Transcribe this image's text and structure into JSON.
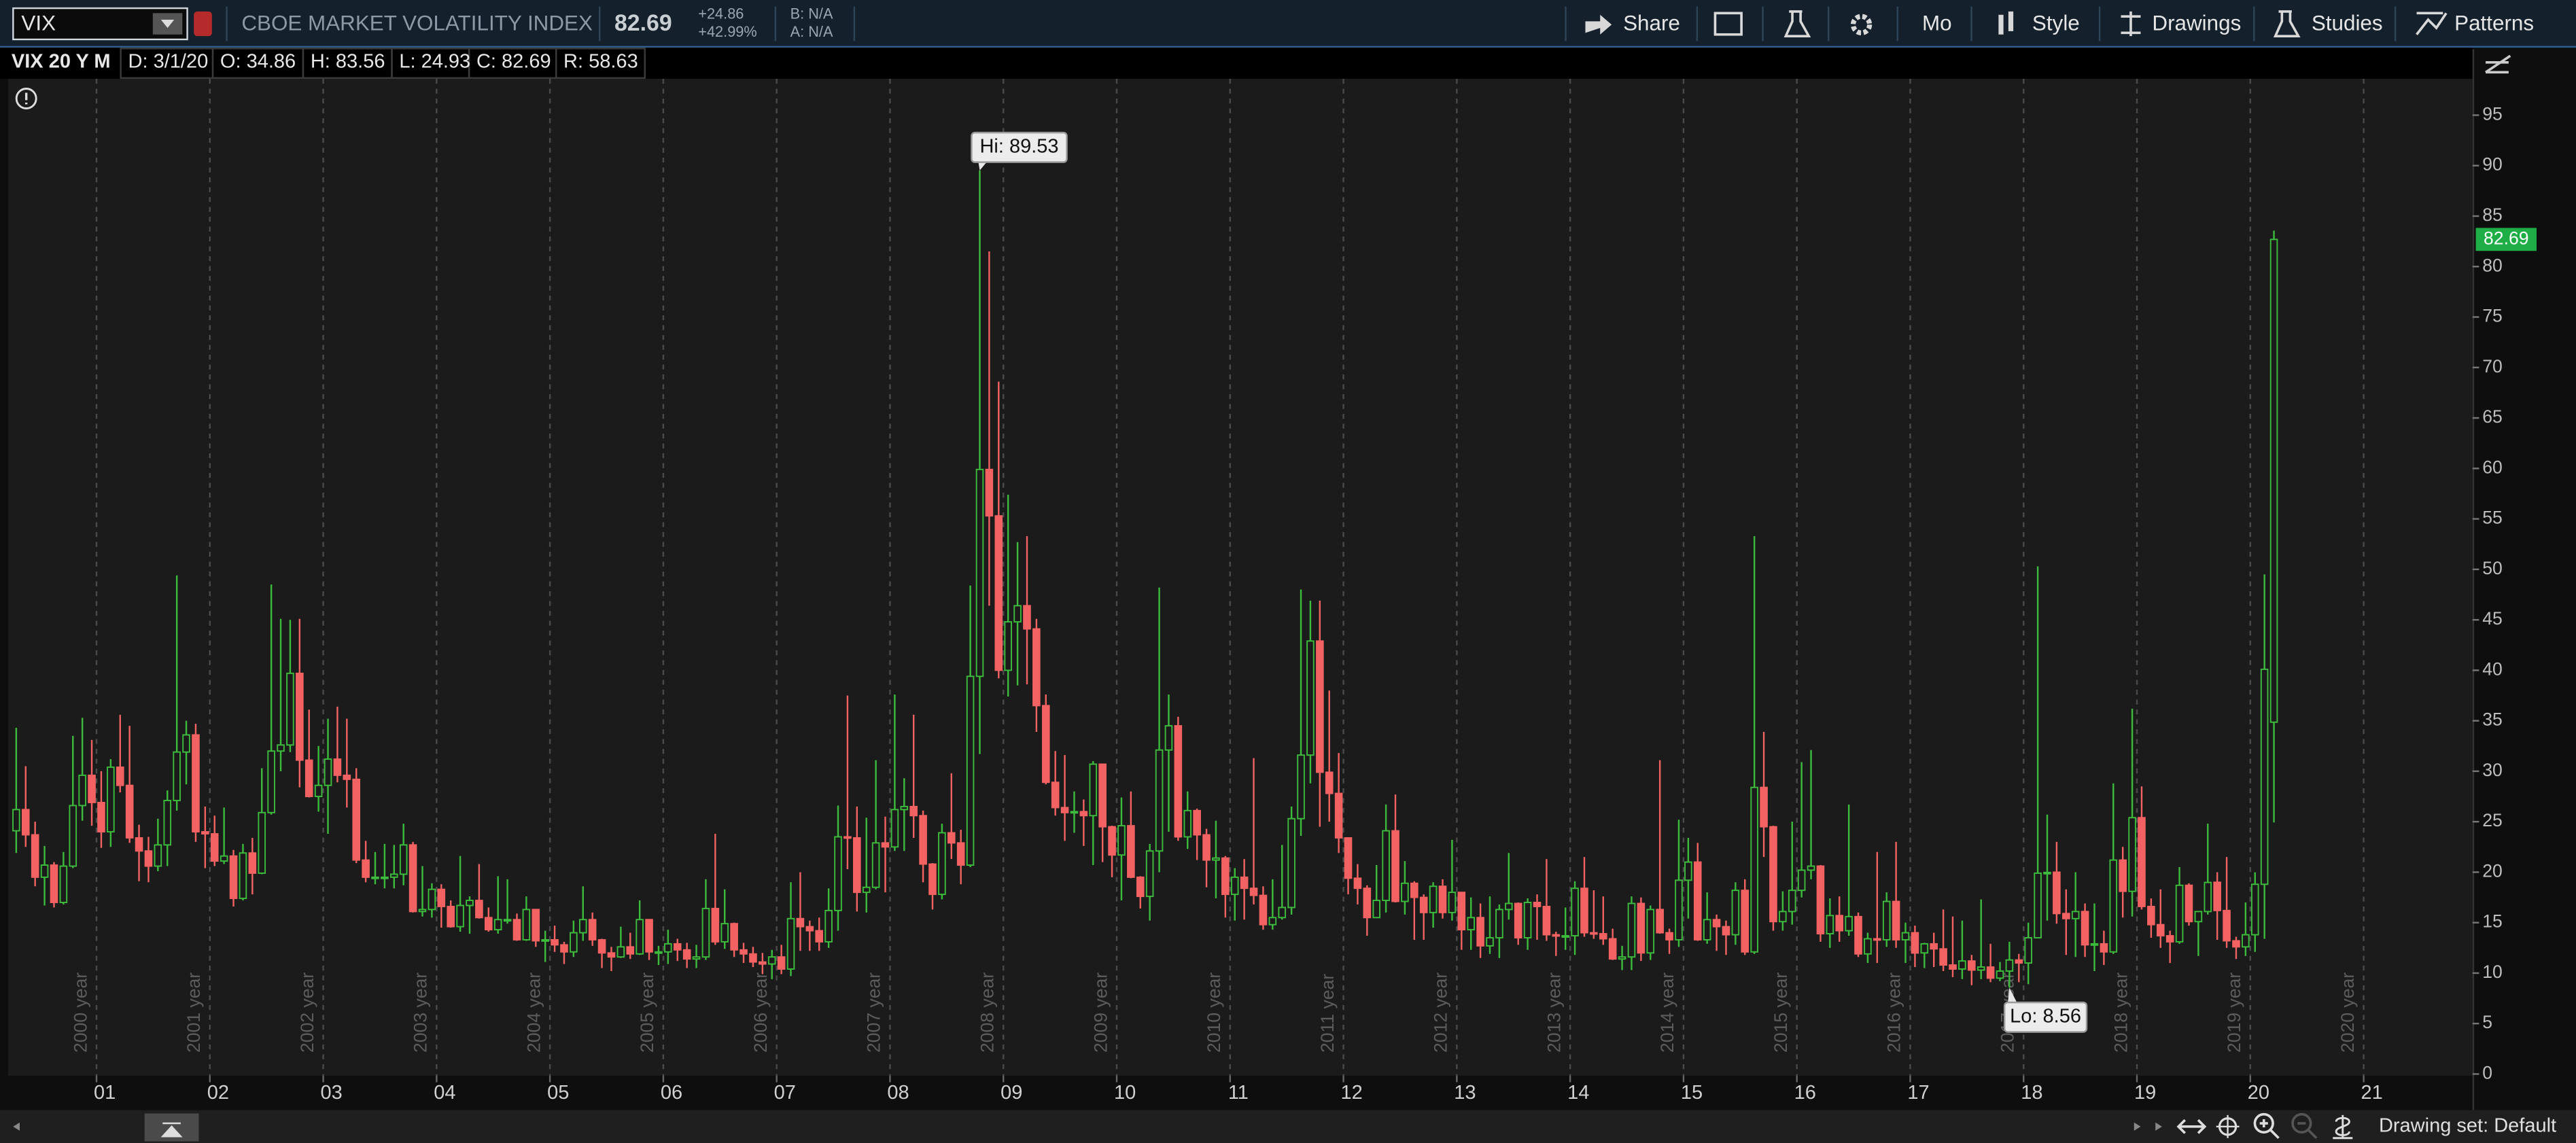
{
  "toolbar": {
    "symbol": "VIX",
    "description": "CBOE MARKET VOLATILITY INDEX",
    "change": "+24.86",
    "change_percent": "+42.99%",
    "bid": "B: N/A",
    "ask": "A: N/A",
    "buttons": [
      "Share",
      "Mo",
      "Style",
      "Drawings",
      "Studies",
      "Patterns"
    ]
  },
  "legend_bar": {
    "study": "VIX 20 Y M",
    "items": [
      "D: 3/1/20",
      "O: 34.86",
      "H: 83.56",
      "L: 24.93",
      "C: 82.69",
      "R: 58.63"
    ]
  },
  "footer": {
    "drawing_set": "Drawing set: Default"
  },
  "chart_data": {
    "type": "candlestick",
    "title": "CBOE MARKET VOLATILITY INDEX",
    "x": [
      "2000-04",
      "2000-05",
      "2000-06",
      "2000-07",
      "2000-08",
      "2000-09",
      "2000-10",
      "2000-11",
      "2000-12",
      "2001-01",
      "2001-02",
      "2001-03",
      "2001-04",
      "2001-05",
      "2001-06",
      "2001-07",
      "2001-08",
      "2001-09",
      "2001-10",
      "2001-11",
      "2001-12",
      "2002-01",
      "2002-02",
      "2002-03",
      "2002-04",
      "2002-05",
      "2002-06",
      "2002-07",
      "2002-08",
      "2002-09",
      "2002-10",
      "2002-11",
      "2002-12",
      "2003-01",
      "2003-02",
      "2003-03",
      "2003-04",
      "2003-05",
      "2003-06",
      "2003-07",
      "2003-08",
      "2003-09",
      "2003-10",
      "2003-11",
      "2003-12",
      "2004-01",
      "2004-02",
      "2004-03",
      "2004-04",
      "2004-05",
      "2004-06",
      "2004-07",
      "2004-08",
      "2004-09",
      "2004-10",
      "2004-11",
      "2004-12",
      "2005-01",
      "2005-02",
      "2005-03",
      "2005-04",
      "2005-05",
      "2005-06",
      "2005-07",
      "2005-08",
      "2005-09",
      "2005-10",
      "2005-11",
      "2005-12",
      "2006-01",
      "2006-02",
      "2006-03",
      "2006-04",
      "2006-05",
      "2006-06",
      "2006-07",
      "2006-08",
      "2006-09",
      "2006-10",
      "2006-11",
      "2006-12",
      "2007-01",
      "2007-02",
      "2007-03",
      "2007-04",
      "2007-05",
      "2007-06",
      "2007-07",
      "2007-08",
      "2007-09",
      "2007-10",
      "2007-11",
      "2007-12",
      "2008-01",
      "2008-02",
      "2008-03",
      "2008-04",
      "2008-05",
      "2008-06",
      "2008-07",
      "2008-08",
      "2008-09",
      "2008-10",
      "2008-11",
      "2008-12",
      "2009-01",
      "2009-02",
      "2009-03",
      "2009-04",
      "2009-05",
      "2009-06",
      "2009-07",
      "2009-08",
      "2009-09",
      "2009-10",
      "2009-11",
      "2009-12",
      "2010-01",
      "2010-02",
      "2010-03",
      "2010-04",
      "2010-05",
      "2010-06",
      "2010-07",
      "2010-08",
      "2010-09",
      "2010-10",
      "2010-11",
      "2010-12",
      "2011-01",
      "2011-02",
      "2011-03",
      "2011-04",
      "2011-05",
      "2011-06",
      "2011-07",
      "2011-08",
      "2011-09",
      "2011-10",
      "2011-11",
      "2011-12",
      "2012-01",
      "2012-02",
      "2012-03",
      "2012-04",
      "2012-05",
      "2012-06",
      "2012-07",
      "2012-08",
      "2012-09",
      "2012-10",
      "2012-11",
      "2012-12",
      "2013-01",
      "2013-02",
      "2013-03",
      "2013-04",
      "2013-05",
      "2013-06",
      "2013-07",
      "2013-08",
      "2013-09",
      "2013-10",
      "2013-11",
      "2013-12",
      "2014-01",
      "2014-02",
      "2014-03",
      "2014-04",
      "2014-05",
      "2014-06",
      "2014-07",
      "2014-08",
      "2014-09",
      "2014-10",
      "2014-11",
      "2014-12",
      "2015-01",
      "2015-02",
      "2015-03",
      "2015-04",
      "2015-05",
      "2015-06",
      "2015-07",
      "2015-08",
      "2015-09",
      "2015-10",
      "2015-11",
      "2015-12",
      "2016-01",
      "2016-02",
      "2016-03",
      "2016-04",
      "2016-05",
      "2016-06",
      "2016-07",
      "2016-08",
      "2016-09",
      "2016-10",
      "2016-11",
      "2016-12",
      "2017-01",
      "2017-02",
      "2017-03",
      "2017-04",
      "2017-05",
      "2017-06",
      "2017-07",
      "2017-08",
      "2017-09",
      "2017-10",
      "2017-11",
      "2017-12",
      "2018-01",
      "2018-02",
      "2018-03",
      "2018-04",
      "2018-05",
      "2018-06",
      "2018-07",
      "2018-08",
      "2018-09",
      "2018-10",
      "2018-11",
      "2018-12",
      "2019-01",
      "2019-02",
      "2019-03",
      "2019-04",
      "2019-05",
      "2019-06",
      "2019-07",
      "2019-08",
      "2019-09",
      "2019-10",
      "2019-11",
      "2019-12",
      "2020-01",
      "2020-02",
      "2020-03"
    ],
    "open": [
      24.1,
      26.2,
      23.7,
      19.5,
      20.7,
      17.0,
      20.6,
      26.6,
      29.6,
      26.9,
      24.0,
      30.4,
      28.6,
      23.4,
      22.1,
      20.6,
      22.7,
      27.1,
      31.9,
      33.6,
      24.0,
      23.8,
      21.1,
      21.6,
      17.4,
      21.9,
      19.9,
      25.9,
      32.0,
      32.6,
      39.7,
      31.1,
      27.5,
      28.6,
      31.2,
      29.6,
      29.2,
      21.2,
      19.5,
      19.5,
      19.5,
      19.8,
      22.7,
      16.1,
      16.3,
      18.3,
      16.6,
      14.6,
      16.7,
      17.2,
      15.5,
      14.3,
      15.3,
      15.3,
      13.3,
      16.3,
      13.2,
      13.3,
      12.8,
      12.1,
      14.0,
      15.3,
      13.3,
      12.0,
      11.6,
      12.6,
      11.9,
      15.3,
      12.1,
      12.1,
      12.9,
      12.3,
      11.4,
      11.6,
      16.4,
      13.1,
      14.9,
      12.3,
      11.9,
      11.1,
      10.9,
      11.6,
      10.4,
      15.4,
      14.6,
      14.2,
      13.1,
      16.2,
      23.5,
      23.4,
      18.0,
      18.5,
      22.9,
      22.5,
      26.2,
      26.5,
      25.6,
      20.8,
      17.8,
      23.9,
      22.9,
      20.7,
      39.4,
      59.9,
      55.3,
      40.0,
      44.8,
      46.4,
      44.1,
      36.5,
      28.9,
      26.4,
      25.9,
      26.0,
      25.6,
      30.7,
      24.5,
      21.7,
      24.6,
      19.5,
      17.6,
      22.1,
      32.1,
      34.5,
      23.5,
      26.1,
      23.7,
      21.2,
      21.4,
      17.8,
      19.5,
      18.4,
      17.7,
      14.8,
      15.5,
      16.5,
      25.3,
      31.6,
      42.9,
      29.9,
      27.8,
      23.4,
      19.4,
      18.4,
      15.5,
      17.2,
      24.1,
      17.1,
      18.9,
      17.5,
      16.0,
      18.6,
      16.0,
      18.0,
      14.3,
      15.5,
      12.7,
      13.5,
      16.3,
      16.9,
      13.5,
      17.0,
      16.6,
      13.8,
      13.7,
      13.7,
      18.4,
      14.0,
      13.9,
      13.4,
      11.4,
      11.6,
      16.9,
      12.0,
      16.3,
      14.0,
      13.3,
      19.2,
      21.0,
      13.3,
      15.3,
      14.6,
      13.8,
      18.2,
      12.1,
      28.4,
      24.5,
      15.1,
      16.1,
      18.2,
      20.2,
      20.6,
      13.9,
      15.7,
      14.2,
      15.6,
      11.9,
      13.4,
      13.3,
      17.1,
      13.3,
      14.0,
      12.0,
      12.9,
      12.4,
      10.8,
      10.4,
      11.2,
      10.3,
      10.6,
      9.5,
      10.2,
      11.3,
      11.0,
      13.5,
      19.9,
      20.0,
      15.9,
      15.4,
      16.1,
      12.8,
      12.9,
      12.1,
      21.2,
      18.1,
      25.4,
      16.6,
      14.8,
      13.7,
      13.1,
      18.7,
      15.1,
      16.1,
      19.0,
      16.2,
      13.2,
      12.6,
      13.8,
      18.8,
      34.86
    ],
    "high": [
      34.3,
      30.5,
      25.0,
      22.6,
      21.0,
      22.0,
      33.5,
      35.3,
      33.1,
      30.0,
      31.2,
      35.6,
      34.5,
      24.7,
      23.5,
      25.3,
      28.1,
      49.4,
      35.0,
      34.7,
      26.5,
      25.6,
      26.4,
      22.2,
      22.8,
      23.4,
      30.3,
      48.5,
      45.1,
      45.0,
      45.1,
      36.1,
      32.5,
      35.2,
      36.4,
      35.2,
      30.3,
      23.1,
      22.0,
      22.8,
      22.7,
      24.8,
      23.0,
      20.6,
      18.9,
      18.8,
      17.2,
      21.6,
      17.6,
      20.8,
      16.5,
      19.6,
      19.3,
      15.9,
      17.6,
      16.3,
      14.2,
      14.7,
      13.1,
      15.2,
      18.6,
      16.0,
      13.4,
      12.6,
      14.6,
      14.0,
      17.2,
      15.3,
      12.7,
      14.3,
      13.4,
      13.0,
      12.8,
      19.3,
      23.8,
      18.3,
      15.0,
      13.0,
      12.6,
      12.0,
      12.3,
      12.8,
      19.0,
      20.0,
      15.2,
      15.5,
      18.4,
      26.6,
      37.5,
      26.5,
      25.4,
      31.1,
      25.5,
      37.6,
      29.3,
      35.6,
      26.1,
      20.9,
      24.8,
      29.8,
      24.2,
      48.4,
      89.53,
      81.5,
      68.6,
      57.4,
      52.7,
      53.3,
      45.1,
      37.6,
      32.0,
      31.6,
      28.0,
      27.2,
      31.0,
      30.7,
      24.6,
      27.4,
      28.0,
      19.6,
      22.8,
      48.2,
      37.6,
      35.4,
      28.0,
      26.3,
      24.3,
      25.1,
      21.6,
      20.4,
      21.3,
      31.3,
      18.6,
      19.3,
      22.7,
      26.5,
      48.0,
      46.9,
      46.9,
      38.0,
      31.8,
      23.4,
      20.8,
      18.7,
      20.7,
      26.7,
      27.7,
      21.1,
      19.1,
      17.8,
      19.0,
      19.3,
      23.2,
      18.0,
      17.5,
      16.9,
      17.6,
      16.8,
      21.9,
      17.0,
      17.4,
      17.8,
      21.3,
      14.1,
      16.5,
      19.1,
      21.5,
      18.2,
      17.6,
      14.4,
      12.7,
      17.6,
      17.5,
      16.7,
      31.1,
      14.4,
      25.2,
      23.4,
      22.9,
      18.0,
      15.8,
      15.2,
      19.0,
      19.3,
      53.3,
      33.9,
      24.6,
      18.1,
      25.0,
      30.9,
      32.1,
      20.7,
      17.4,
      17.6,
      26.7,
      16.0,
      14.0,
      22.0,
      18.0,
      23.0,
      15.0,
      14.7,
      13.0,
      14.0,
      16.3,
      15.6,
      15.2,
      11.8,
      17.3,
      12.9,
      11.1,
      13.1,
      11.9,
      15.0,
      50.3,
      25.7,
      23.0,
      18.3,
      20.0,
      16.9,
      16.9,
      14.2,
      28.8,
      22.5,
      36.2,
      28.5,
      17.4,
      18.3,
      14.2,
      20.5,
      18.9,
      16.0,
      24.8,
      20.0,
      21.5,
      13.6,
      17.0,
      19.99,
      49.5,
      83.56
    ],
    "low": [
      21.9,
      22.5,
      18.6,
      16.7,
      16.5,
      16.8,
      20.4,
      25.1,
      24.6,
      22.4,
      22.5,
      27.9,
      22.9,
      19.1,
      19.0,
      20.1,
      20.6,
      26.1,
      28.7,
      23.0,
      20.4,
      20.6,
      20.8,
      16.6,
      17.2,
      17.8,
      19.8,
      25.7,
      30.0,
      31.9,
      28.4,
      27.4,
      26.0,
      23.8,
      28.9,
      26.4,
      20.9,
      19.0,
      18.8,
      18.4,
      18.4,
      18.7,
      16.0,
      15.6,
      15.5,
      14.5,
      14.5,
      14.1,
      13.9,
      15.4,
      14.1,
      13.9,
      14.9,
      13.2,
      13.2,
      12.6,
      11.1,
      12.1,
      10.9,
      11.6,
      13.2,
      12.7,
      10.5,
      10.2,
      11.5,
      11.4,
      11.8,
      11.3,
      10.8,
      10.9,
      11.2,
      10.5,
      10.5,
      11.3,
      12.8,
      12.4,
      11.6,
      11.0,
      10.6,
      9.9,
      9.4,
      9.9,
      9.7,
      12.2,
      12.2,
      12.2,
      12.5,
      14.2,
      20.3,
      16.1,
      16.0,
      18.3,
      18.0,
      22.1,
      22.1,
      23.4,
      19.0,
      16.3,
      17.3,
      21.3,
      18.8,
      20.5,
      31.7,
      46.4,
      39.2,
      37.4,
      38.5,
      38.6,
      33.9,
      28.7,
      25.6,
      23.1,
      23.9,
      22.6,
      20.7,
      21.0,
      19.5,
      17.2,
      19.4,
      16.4,
      15.2,
      20.0,
      24.0,
      23.1,
      22.3,
      21.2,
      18.5,
      17.4,
      15.5,
      15.2,
      15.3,
      16.8,
      14.3,
      14.3,
      15.3,
      15.8,
      23.6,
      28.8,
      24.5,
      25.0,
      21.9,
      17.8,
      16.8,
      13.7,
      15.5,
      16.0,
      17.0,
      15.8,
      13.3,
      13.3,
      14.5,
      15.4,
      15.2,
      12.3,
      12.3,
      11.5,
      11.9,
      11.5,
      15.3,
      12.8,
      12.3,
      13.3,
      13.2,
      11.7,
      12.3,
      11.8,
      13.6,
      13.4,
      12.8,
      11.3,
      10.3,
      10.3,
      11.2,
      11.3,
      13.9,
      11.9,
      12.6,
      15.4,
      13.2,
      12.9,
      12.2,
      11.8,
      12.8,
      11.8,
      11.9,
      21.5,
      14.2,
      14.2,
      14.8,
      17.5,
      19.3,
      13.1,
      12.5,
      13.1,
      13.7,
      11.6,
      11.0,
      11.0,
      12.6,
      12.5,
      11.0,
      10.6,
      10.5,
      10.6,
      10.2,
      9.6,
      9.4,
      8.8,
      9.4,
      9.1,
      9.2,
      8.56,
      9.1,
      8.9,
      13.5,
      15.2,
      14.9,
      11.8,
      11.6,
      11.6,
      10.2,
      10.8,
      11.9,
      15.5,
      15.6,
      16.3,
      13.5,
      12.5,
      11.0,
      12.9,
      14.7,
      11.7,
      15.8,
      13.3,
      12.5,
      11.4,
      11.7,
      12.1,
      13.4,
      24.93
    ],
    "close": [
      26.2,
      23.7,
      19.5,
      20.7,
      17.0,
      20.6,
      26.6,
      29.6,
      26.9,
      24.0,
      30.4,
      28.6,
      23.4,
      22.1,
      20.6,
      22.7,
      27.1,
      31.9,
      33.6,
      24.0,
      23.8,
      21.1,
      21.6,
      17.4,
      21.9,
      19.9,
      25.9,
      32.0,
      32.6,
      39.7,
      31.1,
      27.5,
      28.6,
      31.2,
      29.6,
      29.2,
      21.2,
      19.5,
      19.5,
      19.5,
      19.8,
      22.7,
      16.1,
      16.3,
      18.3,
      16.6,
      14.6,
      16.7,
      17.2,
      15.5,
      14.3,
      15.3,
      15.3,
      13.3,
      16.3,
      13.2,
      13.3,
      12.8,
      12.1,
      14.0,
      15.3,
      13.3,
      12.0,
      11.6,
      12.6,
      11.9,
      15.3,
      12.1,
      12.1,
      12.9,
      12.3,
      11.4,
      11.6,
      16.4,
      13.1,
      14.9,
      12.3,
      11.9,
      11.1,
      10.9,
      11.6,
      10.4,
      15.4,
      14.6,
      14.2,
      13.1,
      16.2,
      23.5,
      23.4,
      18.0,
      18.5,
      22.9,
      22.5,
      26.2,
      26.5,
      25.6,
      20.8,
      17.8,
      23.9,
      22.9,
      20.7,
      39.4,
      59.9,
      55.3,
      40.0,
      44.8,
      46.4,
      44.1,
      36.5,
      28.9,
      26.4,
      25.9,
      26.0,
      25.6,
      30.7,
      24.5,
      21.7,
      24.6,
      19.5,
      17.6,
      22.1,
      32.1,
      34.5,
      23.5,
      26.1,
      23.7,
      21.2,
      21.4,
      17.8,
      19.5,
      18.4,
      17.7,
      14.8,
      15.5,
      16.5,
      25.3,
      31.6,
      42.9,
      29.9,
      27.8,
      23.4,
      19.4,
      18.4,
      15.5,
      17.2,
      24.1,
      17.1,
      18.9,
      17.5,
      16.0,
      18.6,
      16.0,
      18.0,
      14.3,
      15.5,
      12.7,
      13.5,
      16.3,
      16.9,
      13.5,
      17.0,
      16.6,
      13.8,
      13.7,
      13.7,
      18.4,
      14.0,
      13.9,
      13.4,
      11.4,
      11.6,
      16.9,
      12.0,
      16.3,
      14.0,
      13.3,
      19.2,
      21.0,
      13.3,
      15.3,
      14.6,
      13.8,
      18.2,
      12.1,
      28.4,
      24.5,
      15.1,
      16.1,
      18.2,
      20.2,
      20.6,
      13.9,
      15.7,
      14.2,
      15.6,
      11.9,
      13.4,
      13.3,
      17.1,
      13.3,
      14.0,
      11.99,
      12.9,
      12.4,
      10.8,
      10.4,
      11.2,
      10.3,
      10.6,
      9.5,
      10.2,
      11.3,
      11.0,
      13.5,
      19.9,
      19.97,
      15.9,
      15.4,
      16.1,
      12.8,
      12.9,
      12.1,
      21.2,
      18.1,
      25.4,
      16.6,
      14.8,
      13.7,
      13.1,
      18.7,
      15.1,
      16.1,
      18.98,
      16.2,
      13.2,
      12.6,
      13.8,
      18.8,
      40.1,
      82.69
    ],
    "colors": {
      "up": "#3dbb3d",
      "down": "#f26262",
      "last_price": "#1fae45"
    },
    "xlim": [
      "2000-04",
      "2021-12"
    ],
    "xticks": [
      {
        "value": "2001-01",
        "label": "01"
      },
      {
        "value": "2002-01",
        "label": "02"
      },
      {
        "value": "2003-01",
        "label": "03"
      },
      {
        "value": "2004-01",
        "label": "04"
      },
      {
        "value": "2005-01",
        "label": "05"
      },
      {
        "value": "2006-01",
        "label": "06"
      },
      {
        "value": "2007-01",
        "label": "07"
      },
      {
        "value": "2008-01",
        "label": "08"
      },
      {
        "value": "2009-01",
        "label": "09"
      },
      {
        "value": "2010-01",
        "label": "10"
      },
      {
        "value": "2011-01",
        "label": "11"
      },
      {
        "value": "2012-01",
        "label": "12"
      },
      {
        "value": "2013-01",
        "label": "13"
      },
      {
        "value": "2014-01",
        "label": "14"
      },
      {
        "value": "2015-01",
        "label": "15"
      },
      {
        "value": "2016-01",
        "label": "16"
      },
      {
        "value": "2017-01",
        "label": "17"
      },
      {
        "value": "2018-01",
        "label": "18"
      },
      {
        "value": "2019-01",
        "label": "19"
      },
      {
        "value": "2020-01",
        "label": "20"
      },
      {
        "value": "2021-01",
        "label": "21"
      }
    ],
    "year_lines": [
      {
        "value": "2001-01",
        "label": "2000 year"
      },
      {
        "value": "2002-01",
        "label": "2001 year"
      },
      {
        "value": "2003-01",
        "label": "2002 year"
      },
      {
        "value": "2004-01",
        "label": "2003 year"
      },
      {
        "value": "2005-01",
        "label": "2004 year"
      },
      {
        "value": "2006-01",
        "label": "2005 year"
      },
      {
        "value": "2007-01",
        "label": "2006 year"
      },
      {
        "value": "2008-01",
        "label": "2007 year"
      },
      {
        "value": "2009-01",
        "label": "2008 year"
      },
      {
        "value": "2010-01",
        "label": "2009 year"
      },
      {
        "value": "2011-01",
        "label": "2010 year"
      },
      {
        "value": "2012-01",
        "label": "2011 year"
      },
      {
        "value": "2013-01",
        "label": "2012 year"
      },
      {
        "value": "2014-01",
        "label": "2013 year"
      },
      {
        "value": "2015-01",
        "label": "2014 year"
      },
      {
        "value": "2016-01",
        "label": "2015 year"
      },
      {
        "value": "2017-01",
        "label": "2016 year"
      },
      {
        "value": "2018-01",
        "label": "2017 year"
      },
      {
        "value": "2019-01",
        "label": "2018 year"
      },
      {
        "value": "2020-01",
        "label": "2019 year"
      },
      {
        "value": "2021-01",
        "label": "2020 year"
      }
    ],
    "ylim": [
      0,
      98.6
    ],
    "yticks": [
      0,
      5,
      10,
      15,
      20,
      25,
      30,
      35,
      40,
      45,
      50,
      55,
      60,
      65,
      70,
      75,
      80,
      85,
      90,
      95
    ],
    "grid": false,
    "annotations": {
      "high": "Hi: 89.53",
      "low": "Lo: 8.56"
    }
  }
}
